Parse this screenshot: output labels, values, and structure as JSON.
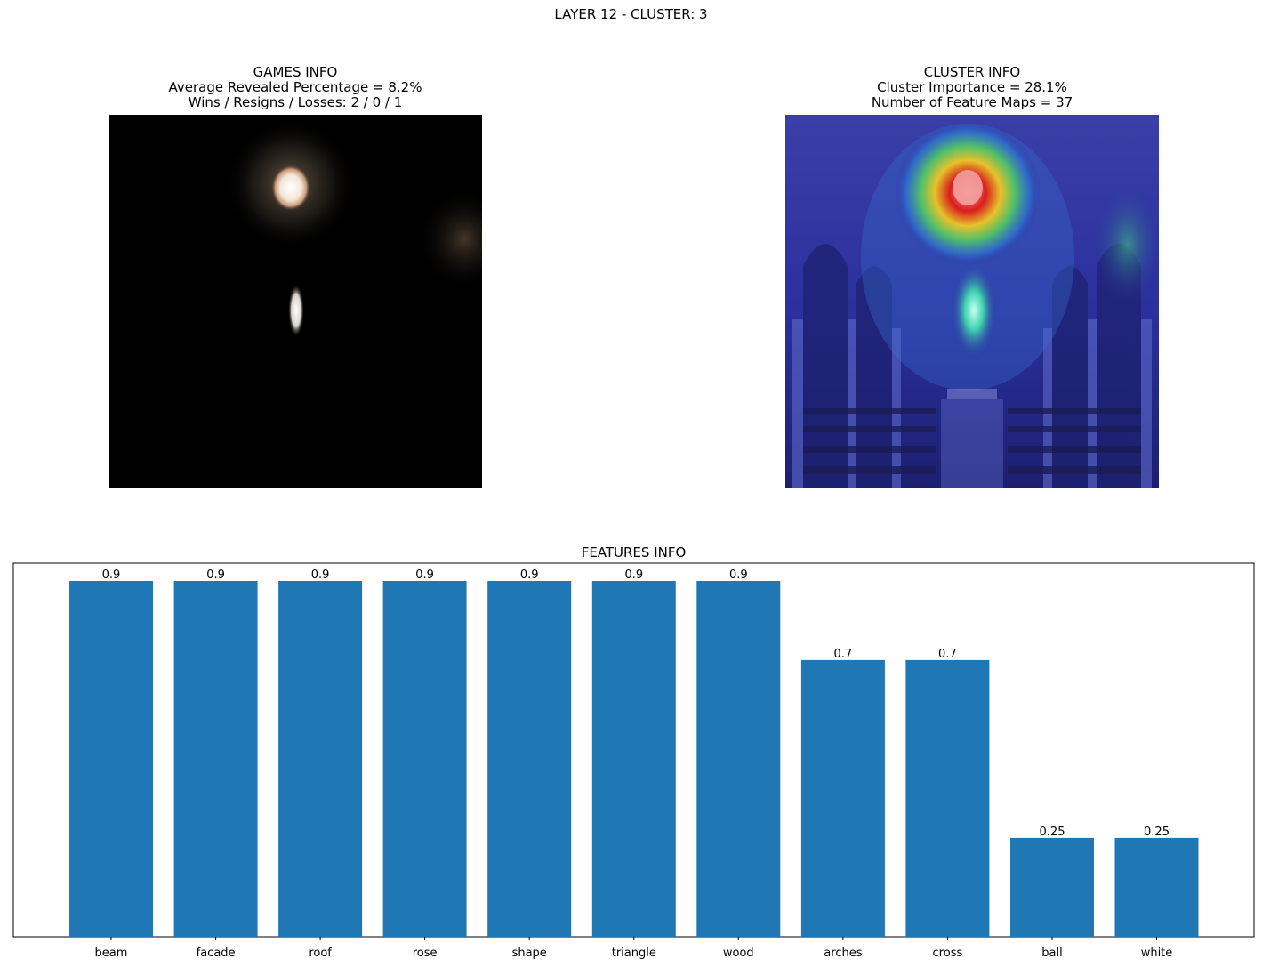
{
  "suptitle": "LAYER 12 - CLUSTER: 3",
  "games_info": {
    "title": "GAMES INFO",
    "line1": "Average Revealed Percentage = 8.2%",
    "line2": "Wins / Resigns / Losses: 2 / 0 / 1"
  },
  "cluster_info": {
    "title": "CLUSTER INFO",
    "line1": "Cluster Importance = 28.1%",
    "line2": "Number of Feature Maps = 37"
  },
  "colors": {
    "bar": "#1f77b4"
  },
  "chart_data": {
    "type": "bar",
    "title": "FEATURES INFO",
    "categories": [
      "beam",
      "facade",
      "roof",
      "rose",
      "shape",
      "triangle",
      "wood",
      "arches",
      "cross",
      "ball",
      "white"
    ],
    "values": [
      0.9,
      0.9,
      0.9,
      0.9,
      0.9,
      0.9,
      0.9,
      0.7,
      0.7,
      0.25,
      0.25
    ],
    "value_labels": [
      "0.9",
      "0.9",
      "0.9",
      "0.9",
      "0.9",
      "0.9",
      "0.9",
      "0.7",
      "0.7",
      "0.25",
      "0.25"
    ],
    "ylim": [
      0,
      0.945
    ],
    "xlabel": "",
    "ylabel": "",
    "yticks_visible": false
  }
}
